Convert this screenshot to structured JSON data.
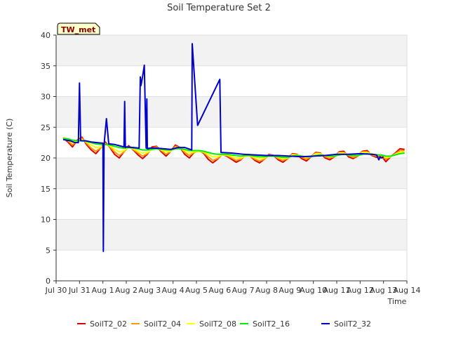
{
  "chart_data": {
    "type": "line",
    "title": "Soil Temperature Set 2",
    "xlabel": "Time",
    "ylabel": "Soil Temperature (C)",
    "station_tag": "TW_met",
    "ylim": [
      0,
      40
    ],
    "yticks": [
      0,
      5,
      10,
      15,
      20,
      25,
      30,
      35,
      40
    ],
    "xlim": [
      0,
      15
    ],
    "xticks": [
      {
        "pos": 0,
        "label": "Jul 30"
      },
      {
        "pos": 1,
        "label": "Jul 31"
      },
      {
        "pos": 2,
        "label": "Aug 1"
      },
      {
        "pos": 3,
        "label": "Aug 2"
      },
      {
        "pos": 4,
        "label": "Aug 3"
      },
      {
        "pos": 5,
        "label": "Aug 4"
      },
      {
        "pos": 6,
        "label": "Aug 5"
      },
      {
        "pos": 7,
        "label": "Aug 6"
      },
      {
        "pos": 8,
        "label": "Aug 7"
      },
      {
        "pos": 9,
        "label": "Aug 8"
      },
      {
        "pos": 10,
        "label": "Aug 9"
      },
      {
        "pos": 11,
        "label": "Aug 10"
      },
      {
        "pos": 12,
        "label": "Aug 11"
      },
      {
        "pos": 13,
        "label": "Aug 12"
      },
      {
        "pos": 14,
        "label": "Aug 13"
      },
      {
        "pos": 15,
        "label": "Aug 14"
      }
    ],
    "legend_position": "bottom",
    "series": [
      {
        "name": "SoilT2_02",
        "color": "#dd0000",
        "x": [
          0.3,
          0.5,
          0.7,
          0.9,
          1.1,
          1.3,
          1.5,
          1.7,
          1.9,
          2.1,
          2.3,
          2.5,
          2.7,
          2.9,
          3.1,
          3.3,
          3.5,
          3.7,
          3.9,
          4.1,
          4.3,
          4.5,
          4.7,
          4.9,
          5.1,
          5.3,
          5.5,
          5.7,
          5.9,
          6.1,
          6.3,
          6.5,
          6.7,
          6.9,
          7.1,
          7.3,
          7.5,
          7.7,
          7.9,
          8.1,
          8.3,
          8.5,
          8.7,
          8.9,
          9.1,
          9.3,
          9.5,
          9.7,
          9.9,
          10.1,
          10.3,
          10.5,
          10.7,
          10.9,
          11.1,
          11.3,
          11.5,
          11.7,
          11.9,
          12.1,
          12.3,
          12.5,
          12.7,
          12.9,
          13.1,
          13.3,
          13.5,
          13.7,
          13.9,
          14.1,
          14.3,
          14.5,
          14.7,
          14.9
        ],
        "y": [
          23.3,
          22.6,
          21.8,
          22.9,
          23.4,
          22.2,
          21.3,
          20.7,
          21.6,
          22.6,
          21.7,
          20.6,
          20.0,
          21.0,
          22.0,
          21.3,
          20.5,
          19.9,
          20.6,
          21.8,
          21.9,
          21.0,
          20.3,
          21.1,
          22.1,
          21.7,
          20.6,
          20.0,
          20.9,
          21.2,
          20.8,
          19.8,
          19.2,
          19.8,
          20.6,
          20.3,
          19.8,
          19.3,
          19.7,
          20.5,
          20.3,
          19.6,
          19.2,
          19.8,
          20.6,
          20.4,
          19.7,
          19.3,
          19.9,
          20.7,
          20.6,
          19.9,
          19.5,
          20.2,
          20.9,
          20.8,
          20.0,
          19.7,
          20.2,
          21.0,
          21.1,
          20.2,
          19.9,
          20.3,
          21.1,
          21.2,
          20.4,
          20.1,
          20.4,
          19.4,
          20.2,
          20.8,
          21.5,
          21.4
        ]
      },
      {
        "name": "SoilT2_04",
        "color": "#ff9900",
        "x": [
          0.3,
          0.5,
          0.7,
          0.9,
          1.1,
          1.3,
          1.5,
          1.7,
          1.9,
          2.1,
          2.3,
          2.5,
          2.7,
          2.9,
          3.1,
          3.3,
          3.5,
          3.7,
          3.9,
          4.1,
          4.3,
          4.5,
          4.7,
          4.9,
          5.1,
          5.3,
          5.5,
          5.7,
          5.9,
          6.1,
          6.3,
          6.5,
          6.7,
          6.9,
          7.1,
          7.3,
          7.5,
          7.7,
          7.9,
          8.1,
          8.3,
          8.5,
          8.7,
          8.9,
          9.1,
          9.3,
          9.5,
          9.7,
          9.9,
          10.1,
          10.3,
          10.5,
          10.7,
          10.9,
          11.1,
          11.3,
          11.5,
          11.7,
          11.9,
          12.1,
          12.3,
          12.5,
          12.7,
          12.9,
          13.1,
          13.3,
          13.5,
          13.7,
          13.9,
          14.1,
          14.3,
          14.5,
          14.7,
          14.9
        ],
        "y": [
          23.3,
          22.8,
          22.1,
          22.8,
          23.2,
          22.4,
          21.6,
          21.1,
          21.6,
          22.4,
          21.8,
          21.0,
          20.4,
          21.0,
          21.8,
          21.4,
          20.8,
          20.3,
          20.7,
          21.6,
          21.8,
          21.2,
          20.6,
          21.1,
          21.9,
          21.7,
          20.9,
          20.4,
          20.9,
          21.1,
          20.9,
          20.2,
          19.6,
          19.9,
          20.5,
          20.4,
          20.0,
          19.6,
          19.8,
          20.4,
          20.3,
          19.8,
          19.5,
          19.8,
          20.5,
          20.4,
          19.9,
          19.6,
          19.9,
          20.6,
          20.5,
          20.1,
          19.8,
          20.2,
          20.8,
          20.7,
          20.2,
          20.0,
          20.2,
          20.9,
          20.9,
          20.4,
          20.1,
          20.3,
          21.0,
          21.0,
          20.5,
          20.3,
          20.4,
          19.8,
          20.2,
          20.7,
          21.2,
          21.2
        ]
      },
      {
        "name": "SoilT2_08",
        "color": "#ffff00",
        "x": [
          0.3,
          0.5,
          0.7,
          0.9,
          1.1,
          1.3,
          1.5,
          1.7,
          1.9,
          2.1,
          2.3,
          2.5,
          2.7,
          2.9,
          3.1,
          3.3,
          3.5,
          3.7,
          3.9,
          4.1,
          4.3,
          4.5,
          4.7,
          4.9,
          5.1,
          5.3,
          5.5,
          5.7,
          5.9,
          6.1,
          6.3,
          6.5,
          6.7,
          6.9,
          7.1,
          7.3,
          7.5,
          7.7,
          7.9,
          8.1,
          8.3,
          8.5,
          8.7,
          8.9,
          9.1,
          9.3,
          9.5,
          9.7,
          9.9,
          10.1,
          10.3,
          10.5,
          10.7,
          10.9,
          11.1,
          11.3,
          11.5,
          11.7,
          11.9,
          12.1,
          12.3,
          12.5,
          12.7,
          12.9,
          13.1,
          13.3,
          13.5,
          13.7,
          13.9,
          14.1,
          14.3,
          14.5,
          14.7,
          14.9
        ],
        "y": [
          23.4,
          23.0,
          22.5,
          22.7,
          23.0,
          22.6,
          22.1,
          21.7,
          21.8,
          22.2,
          22.0,
          21.4,
          21.0,
          21.2,
          21.7,
          21.5,
          21.1,
          20.8,
          20.9,
          21.4,
          21.6,
          21.3,
          21.0,
          21.1,
          21.7,
          21.6,
          21.2,
          20.8,
          21.0,
          21.1,
          21.0,
          20.6,
          20.2,
          20.2,
          20.5,
          20.5,
          20.3,
          20.0,
          20.0,
          20.3,
          20.3,
          20.1,
          19.9,
          20.0,
          20.4,
          20.4,
          20.1,
          19.9,
          20.0,
          20.5,
          20.5,
          20.3,
          20.1,
          20.2,
          20.7,
          20.7,
          20.4,
          20.2,
          20.3,
          20.8,
          20.8,
          20.6,
          20.4,
          20.4,
          20.9,
          20.9,
          20.7,
          20.5,
          20.5,
          20.1,
          20.2,
          20.6,
          20.9,
          21.0
        ]
      },
      {
        "name": "SoilT2_16",
        "color": "#00ee00",
        "x": [
          0.3,
          0.5,
          0.7,
          0.9,
          1.1,
          1.3,
          1.5,
          1.7,
          1.9,
          2.1,
          2.3,
          2.5,
          2.7,
          2.9,
          3.1,
          3.3,
          3.5,
          3.7,
          3.9,
          4.1,
          4.3,
          4.5,
          4.7,
          4.9,
          5.1,
          5.3,
          5.5,
          5.7,
          5.9,
          6.1,
          6.3,
          6.5,
          6.7,
          6.9,
          7.1,
          7.3,
          7.5,
          7.7,
          7.9,
          8.1,
          8.3,
          8.5,
          8.7,
          8.9,
          9.1,
          9.3,
          9.5,
          9.7,
          9.9,
          10.1,
          10.3,
          10.5,
          10.7,
          10.9,
          11.1,
          11.3,
          11.5,
          11.7,
          11.9,
          12.1,
          12.3,
          12.5,
          12.7,
          12.9,
          13.1,
          13.3,
          13.5,
          13.7,
          13.9,
          14.1,
          14.3,
          14.5,
          14.7,
          14.9
        ],
        "y": [
          23.2,
          23.1,
          22.9,
          22.8,
          22.8,
          22.7,
          22.5,
          22.3,
          22.2,
          22.2,
          22.1,
          21.9,
          21.7,
          21.6,
          21.7,
          21.6,
          21.5,
          21.3,
          21.3,
          21.4,
          21.5,
          21.4,
          21.3,
          21.3,
          21.5,
          21.5,
          21.4,
          21.2,
          21.2,
          21.2,
          21.1,
          20.9,
          20.7,
          20.6,
          20.6,
          20.6,
          20.5,
          20.4,
          20.3,
          20.4,
          20.4,
          20.3,
          20.2,
          20.2,
          20.3,
          20.3,
          20.2,
          20.1,
          20.1,
          20.3,
          20.4,
          20.3,
          20.2,
          20.2,
          20.4,
          20.5,
          20.4,
          20.3,
          20.3,
          20.5,
          20.6,
          20.5,
          20.4,
          20.4,
          20.6,
          20.7,
          20.6,
          20.5,
          20.5,
          20.3,
          20.3,
          20.5,
          20.7,
          20.8
        ]
      },
      {
        "name": "SoilT2_32",
        "color": "#0000cc",
        "x": [
          0.3,
          0.6,
          0.8,
          0.95,
          1.0,
          1.05,
          1.25,
          1.5,
          1.75,
          2.0,
          2.02,
          2.05,
          2.15,
          2.25,
          2.5,
          2.7,
          2.9,
          2.93,
          2.96,
          3.0,
          3.3,
          3.55,
          3.6,
          3.63,
          3.7,
          3.77,
          3.85,
          3.88,
          3.9,
          3.93,
          3.95,
          4.0,
          4.3,
          4.6,
          4.9,
          5.2,
          5.5,
          5.8,
          5.82,
          6.05,
          7.0,
          7.05,
          7.5,
          8.0,
          8.5,
          9.0,
          9.5,
          10.0,
          10.5,
          11.0,
          11.5,
          12.0,
          12.5,
          13.0,
          13.5,
          13.7,
          13.8,
          13.85,
          13.9,
          14.0
        ],
        "y": [
          23.0,
          22.8,
          22.5,
          22.5,
          32.2,
          22.8,
          22.8,
          22.6,
          22.5,
          22.4,
          4.8,
          22.1,
          26.4,
          22.3,
          22.2,
          22.0,
          21.8,
          29.2,
          21.7,
          21.8,
          21.7,
          21.6,
          33.2,
          31.8,
          33.3,
          35.1,
          21.6,
          29.6,
          21.5,
          21.6,
          21.5,
          21.6,
          21.6,
          21.5,
          21.4,
          21.7,
          21.7,
          21.3,
          38.6,
          25.3,
          32.8,
          20.9,
          20.8,
          20.6,
          20.5,
          20.4,
          20.4,
          20.3,
          20.2,
          20.3,
          20.4,
          20.6,
          20.6,
          20.7,
          20.6,
          20.5,
          19.7,
          20.2,
          20.0,
          20.2
        ]
      }
    ]
  }
}
